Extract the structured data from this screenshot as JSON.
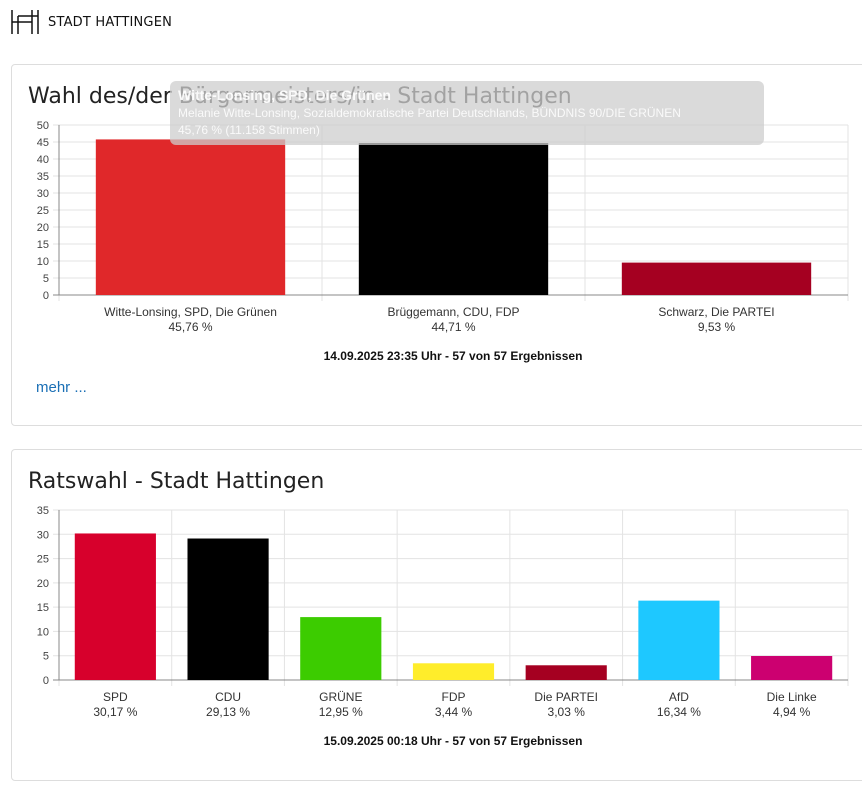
{
  "header": {
    "logo_text": "STADT HATTINGEN"
  },
  "charts": [
    {
      "card_title": "Wahl des/der Bürgermeisters/in - Stadt Hattingen",
      "footer": "14.09.2025 23:35 Uhr - 57 von 57 Ergebnissen",
      "more_link": "mehr ...",
      "tooltip": {
        "title": "Witte-Lonsing, SPD, Die Grünen",
        "line1": "Melanie Witte-Lonsing, Sozialdemokratische Partei Deutschlands, BÜNDNIS 90/DIE GRÜNEN",
        "line2": "45,76 % (11.158 Stimmen)"
      }
    },
    {
      "card_title": "Ratswahl - Stadt Hattingen",
      "footer": "15.09.2025 00:18 Uhr - 57 von 57 Ergebnissen"
    }
  ],
  "chart_data": [
    {
      "type": "bar",
      "title": "Wahl des/der Bürgermeisters/in - Stadt Hattingen",
      "categories": [
        "Witte-Lonsing, SPD, Die Grünen",
        "Brüggemann, CDU, FDP",
        "Schwarz, Die PARTEI"
      ],
      "value_labels": [
        "45,76 %",
        "44,71 %",
        "9,53 %"
      ],
      "values": [
        45.76,
        44.71,
        9.53
      ],
      "colors": [
        "#e0282a",
        "#000000",
        "#a50021"
      ],
      "ylim": [
        0,
        50
      ],
      "yticks": [
        0,
        5,
        10,
        15,
        20,
        25,
        30,
        35,
        40,
        45,
        50
      ],
      "grid": true
    },
    {
      "type": "bar",
      "title": "Ratswahl - Stadt Hattingen",
      "categories": [
        "SPD",
        "CDU",
        "GRÜNE",
        "FDP",
        "Die PARTEI",
        "AfD",
        "Die Linke"
      ],
      "value_labels": [
        "30,17 %",
        "29,13 %",
        "12,95 %",
        "3,44 %",
        "3,03 %",
        "16,34 %",
        "4,94 %"
      ],
      "values": [
        30.17,
        29.13,
        12.95,
        3.44,
        3.03,
        16.34,
        4.94
      ],
      "colors": [
        "#d7002c",
        "#000000",
        "#3ccc00",
        "#ffed2b",
        "#a50021",
        "#1ec8ff",
        "#cc0070"
      ],
      "ylim": [
        0,
        35
      ],
      "yticks": [
        0,
        5,
        10,
        15,
        20,
        25,
        30,
        35
      ],
      "grid": true
    }
  ]
}
